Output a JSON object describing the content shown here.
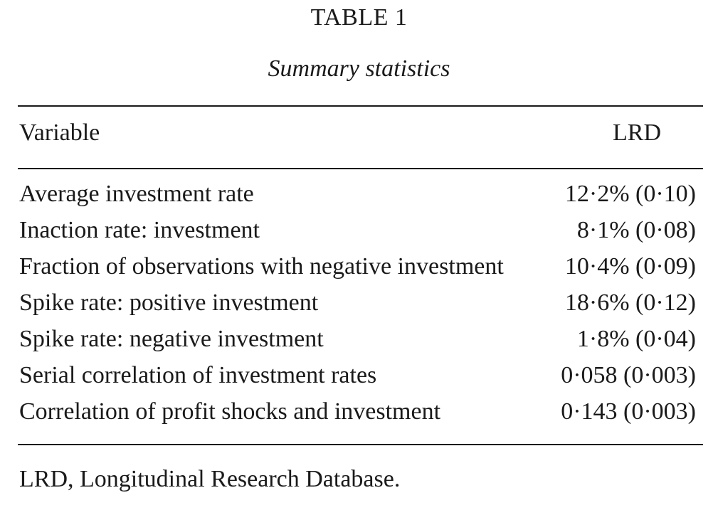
{
  "table": {
    "title": "TABLE 1",
    "subtitle": "Summary statistics",
    "header": {
      "variable": "Variable",
      "column": "LRD"
    },
    "rows": [
      {
        "label": "Average investment rate",
        "value": "12·2% (0·10)"
      },
      {
        "label": "Inaction rate: investment",
        "value": "8·1% (0·08)"
      },
      {
        "label": "Fraction of observations with negative investment",
        "value": "10·4% (0·09)"
      },
      {
        "label": "Spike rate: positive investment",
        "value": "18·6% (0·12)"
      },
      {
        "label": "Spike rate: negative investment",
        "value": "1·8% (0·04)"
      },
      {
        "label": "Serial correlation of investment rates",
        "value": "0·058 (0·003)"
      },
      {
        "label": "Correlation of profit shocks and investment",
        "value": "0·143 (0·003)"
      }
    ],
    "footnote": "LRD, Longitudinal Research Database."
  }
}
